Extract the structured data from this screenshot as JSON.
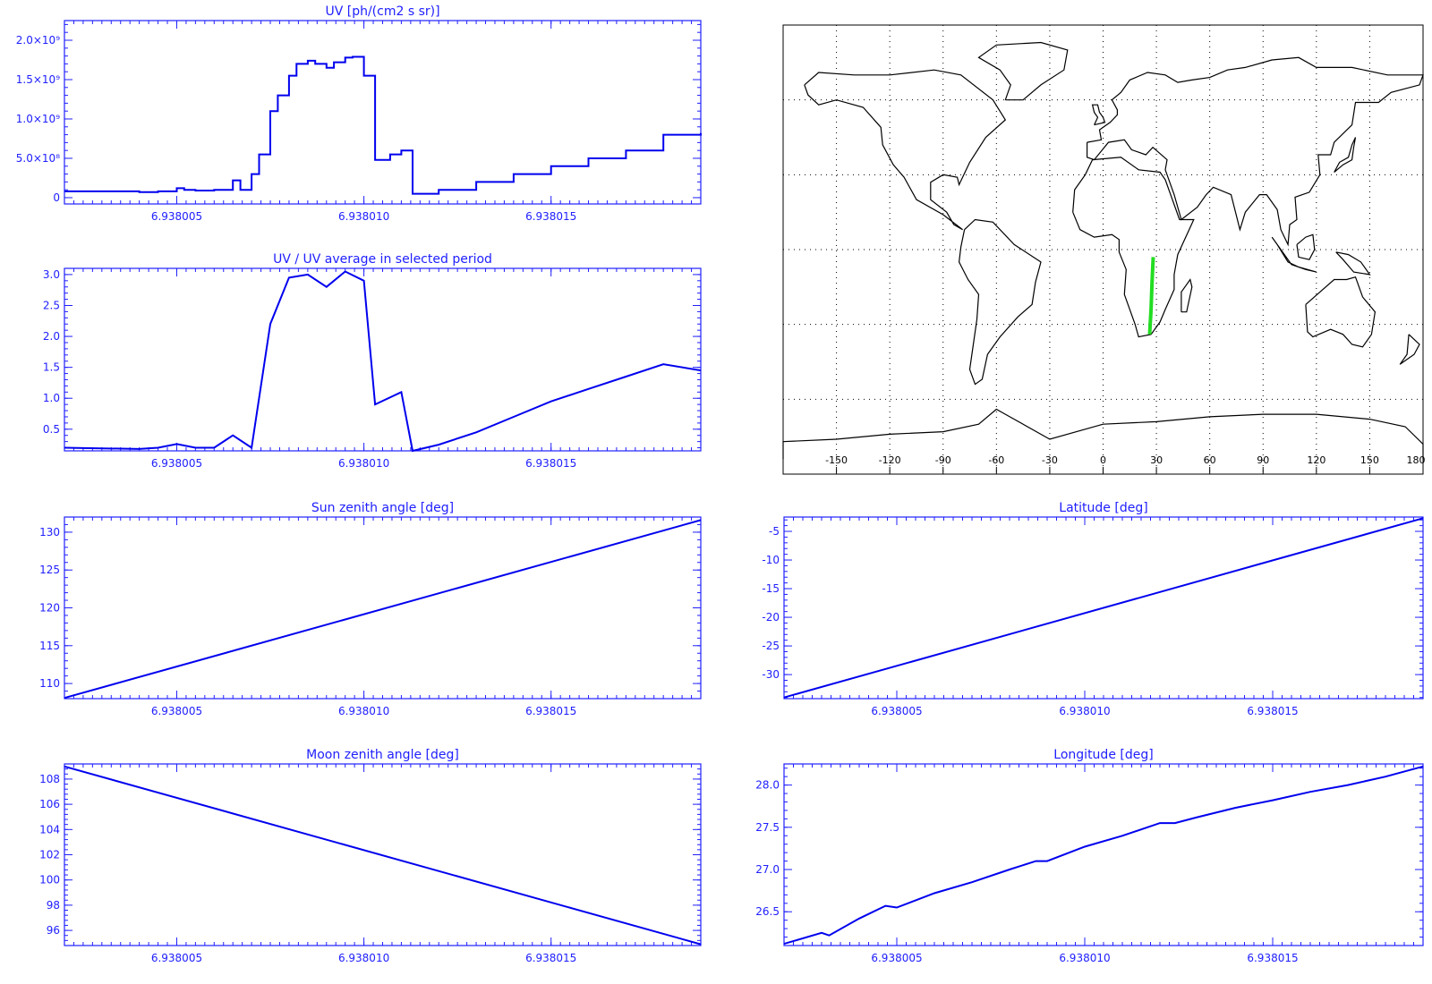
{
  "colors": {
    "axis": "#2020ff",
    "line": "#0000ee",
    "track": "#22dd22",
    "coast": "#000000",
    "grid": "#000000"
  },
  "chart_data": [
    {
      "id": "uv",
      "type": "line",
      "step": true,
      "title": "UV [ph/(cm2 s sr)]",
      "xlim": [
        6.938002,
        6.938019
      ],
      "ylim": [
        -0.08,
        2.25
      ],
      "xticks": [
        6.938005,
        6.93801,
        6.938015
      ],
      "xtick_labels": [
        "6.938005",
        "6.938010",
        "6.938015"
      ],
      "yticks": [
        0,
        0.5,
        1.0,
        1.5,
        2.0
      ],
      "ytick_labels": [
        "0",
        "5.0×10⁸",
        "1.0×10⁹",
        "1.5×10⁹",
        "2.0×10⁹"
      ],
      "series": [
        {
          "x": [
            6.938002,
            6.9380025,
            6.938003,
            6.9380035,
            6.938004,
            6.9380045,
            6.938005,
            6.9380052,
            6.9380055,
            6.938006,
            6.9380065,
            6.9380067,
            6.938007,
            6.9380072,
            6.9380075,
            6.9380077,
            6.938008,
            6.9380082,
            6.9380085,
            6.9380087,
            6.938009,
            6.9380092,
            6.9380095,
            6.9380097,
            6.93801,
            6.9380103,
            6.9380107,
            6.938011,
            6.9380113,
            6.938012,
            6.938013,
            6.938014,
            6.938015,
            6.938016,
            6.938017,
            6.938018,
            6.938019
          ],
          "y": [
            0.08,
            0.08,
            0.08,
            0.08,
            0.07,
            0.08,
            0.12,
            0.1,
            0.09,
            0.1,
            0.22,
            0.1,
            0.3,
            0.55,
            1.1,
            1.3,
            1.55,
            1.7,
            1.74,
            1.7,
            1.65,
            1.72,
            1.78,
            1.79,
            1.55,
            0.48,
            0.55,
            0.6,
            0.05,
            0.1,
            0.2,
            0.3,
            0.4,
            0.5,
            0.6,
            0.8,
            0.82
          ]
        }
      ]
    },
    {
      "id": "uv-ratio",
      "type": "line",
      "title": "UV / UV average in selected period",
      "xlim": [
        6.938002,
        6.938019
      ],
      "ylim": [
        0.15,
        3.1
      ],
      "xticks": [
        6.938005,
        6.93801,
        6.938015
      ],
      "xtick_labels": [
        "6.938005",
        "6.938010",
        "6.938015"
      ],
      "yticks": [
        0.5,
        1.0,
        1.5,
        2.0,
        2.5,
        3.0
      ],
      "ytick_labels": [
        "0.5",
        "1.0",
        "1.5",
        "2.0",
        "2.5",
        "3.0"
      ],
      "series": [
        {
          "x": [
            6.938002,
            6.938003,
            6.938004,
            6.9380045,
            6.938005,
            6.9380055,
            6.938006,
            6.9380065,
            6.938007,
            6.9380075,
            6.938008,
            6.9380085,
            6.938009,
            6.9380095,
            6.93801,
            6.9380103,
            6.938011,
            6.9380113,
            6.938012,
            6.938013,
            6.938014,
            6.938015,
            6.938016,
            6.938017,
            6.938018,
            6.938019
          ],
          "y": [
            0.2,
            0.19,
            0.18,
            0.2,
            0.26,
            0.2,
            0.2,
            0.4,
            0.2,
            2.2,
            2.95,
            3.0,
            2.8,
            3.05,
            2.9,
            0.9,
            1.1,
            0.15,
            0.25,
            0.45,
            0.7,
            0.95,
            1.15,
            1.35,
            1.55,
            1.45
          ]
        }
      ]
    },
    {
      "id": "map",
      "type": "map",
      "title": "",
      "xlim": [
        -180,
        180
      ],
      "ylim": [
        -90,
        90
      ],
      "xticks": [
        -150,
        -120,
        -90,
        -60,
        -30,
        0,
        30,
        60,
        90,
        120,
        150,
        180
      ],
      "xtick_labels": [
        "-150",
        "-120",
        "-90",
        "-60",
        "-30",
        "0",
        "30",
        "60",
        "90",
        "120",
        "150",
        "180"
      ],
      "grid": true,
      "track": {
        "lon": [
          26.2,
          27.0,
          27.5,
          28.2
        ],
        "lat": [
          -34,
          -24,
          -14,
          -3
        ]
      }
    },
    {
      "id": "sun-zenith",
      "type": "line",
      "title": "Sun zenith angle [deg]",
      "xlim": [
        6.938002,
        6.938019
      ],
      "ylim": [
        108,
        132
      ],
      "xticks": [
        6.938005,
        6.93801,
        6.938015
      ],
      "xtick_labels": [
        "6.938005",
        "6.938010",
        "6.938015"
      ],
      "yticks": [
        110,
        115,
        120,
        125,
        130
      ],
      "ytick_labels": [
        "110",
        "115",
        "120",
        "125",
        "130"
      ],
      "series": [
        {
          "x": [
            6.938002,
            6.938019
          ],
          "y": [
            108.1,
            131.6
          ]
        }
      ]
    },
    {
      "id": "latitude",
      "type": "line",
      "title": "Latitude [deg]",
      "xlim": [
        6.938002,
        6.938019
      ],
      "ylim": [
        -34.2,
        -2.5
      ],
      "xticks": [
        6.938005,
        6.93801,
        6.938015
      ],
      "xtick_labels": [
        "6.938005",
        "6.938010",
        "6.938015"
      ],
      "yticks": [
        -30,
        -25,
        -20,
        -15,
        -10,
        -5
      ],
      "ytick_labels": [
        "-30",
        "-25",
        "-20",
        "-15",
        "-10",
        "-5"
      ],
      "series": [
        {
          "x": [
            6.938002,
            6.938019
          ],
          "y": [
            -34.0,
            -2.7
          ]
        }
      ]
    },
    {
      "id": "moon-zenith",
      "type": "line",
      "title": "Moon zenith angle [deg]",
      "xlim": [
        6.938002,
        6.938019
      ],
      "ylim": [
        94.8,
        109.2
      ],
      "xticks": [
        6.938005,
        6.93801,
        6.938015
      ],
      "xtick_labels": [
        "6.938005",
        "6.938010",
        "6.938015"
      ],
      "yticks": [
        96,
        98,
        100,
        102,
        104,
        106,
        108
      ],
      "ytick_labels": [
        "96",
        "98",
        "100",
        "102",
        "104",
        "106",
        "108"
      ],
      "series": [
        {
          "x": [
            6.938002,
            6.938019
          ],
          "y": [
            109.0,
            94.9
          ]
        }
      ]
    },
    {
      "id": "longitude",
      "type": "line",
      "title": "Longitude [deg]",
      "xlim": [
        6.938002,
        6.938019
      ],
      "ylim": [
        26.1,
        28.25
      ],
      "xticks": [
        6.938005,
        6.93801,
        6.938015
      ],
      "xtick_labels": [
        "6.938005",
        "6.938010",
        "6.938015"
      ],
      "yticks": [
        26.5,
        27.0,
        27.5,
        28.0
      ],
      "ytick_labels": [
        "26.5",
        "27.0",
        "27.5",
        "28.0"
      ],
      "series": [
        {
          "x": [
            6.938002,
            6.938003,
            6.9380032,
            6.938004,
            6.9380047,
            6.938005,
            6.938006,
            6.938007,
            6.938008,
            6.9380087,
            6.938009,
            6.93801,
            6.938011,
            6.938012,
            6.9380124,
            6.938013,
            6.938014,
            6.938015,
            6.938016,
            6.938017,
            6.938018,
            6.938019
          ],
          "y": [
            26.12,
            26.25,
            26.22,
            26.42,
            26.57,
            26.55,
            26.72,
            26.85,
            27.0,
            27.1,
            27.1,
            27.27,
            27.4,
            27.55,
            27.55,
            27.62,
            27.73,
            27.82,
            27.92,
            28.0,
            28.1,
            28.22
          ]
        }
      ]
    }
  ]
}
